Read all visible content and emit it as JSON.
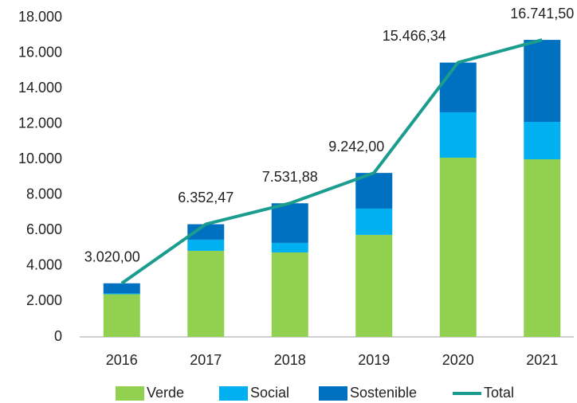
{
  "chart_data": {
    "type": "bar",
    "categories": [
      "2016",
      "2017",
      "2018",
      "2019",
      "2020",
      "2021"
    ],
    "series": [
      {
        "name": "Verde",
        "color": "#92d050",
        "values": [
          2400,
          4850,
          4760,
          5750,
          10100,
          10010
        ]
      },
      {
        "name": "Social",
        "color": "#00b0f0",
        "values": [
          50,
          630,
          540,
          1480,
          2560,
          2110
        ]
      },
      {
        "name": "Sostenible",
        "color": "#0070c0",
        "values": [
          570,
          870,
          2230,
          2010,
          2800,
          4620
        ]
      },
      {
        "name": "Total",
        "type": "line",
        "color": "#1a9c8f",
        "values": [
          3020,
          6352.47,
          7531.88,
          9242,
          15466.34,
          16741.5
        ],
        "value_labels": [
          "3.020,00",
          "6.352,47",
          "7.531,88",
          "9.242,00",
          "15.466,34",
          "16.741,50"
        ]
      }
    ],
    "stacked": true,
    "ylim": [
      0,
      18000
    ],
    "yticks": [
      0,
      {
        "value": 2000,
        "label": "2.000"
      },
      {
        "value": 4000,
        "label": "4.000"
      },
      {
        "value": 6000,
        "label": "6.000"
      },
      {
        "value": 8000,
        "label": "8.000"
      },
      {
        "value": 10000,
        "label": "10.000"
      },
      {
        "value": 12000,
        "label": "12.000"
      },
      {
        "value": 14000,
        "label": "14.000"
      },
      {
        "value": 16000,
        "label": "16.000"
      },
      {
        "value": 18000,
        "label": "18.000"
      }
    ],
    "grid": false,
    "legend": "bottom"
  }
}
